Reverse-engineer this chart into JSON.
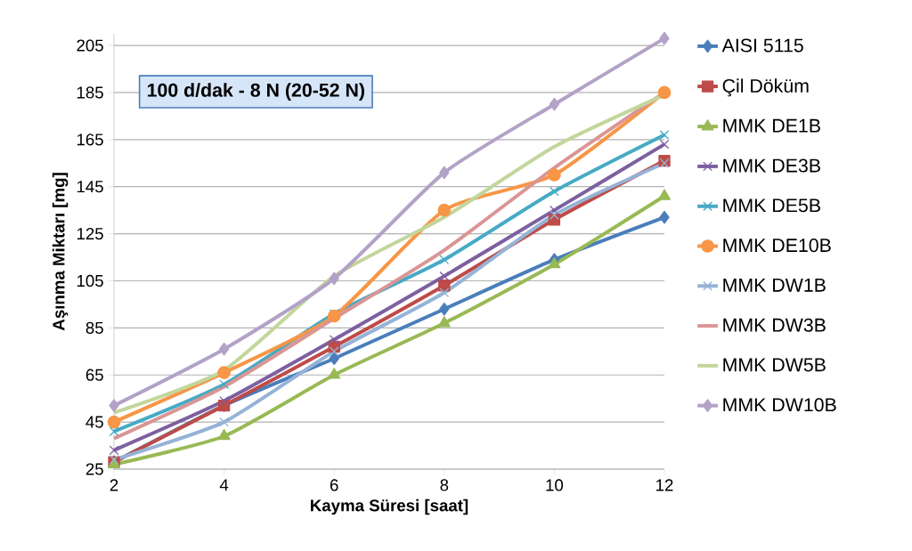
{
  "chart_data": {
    "type": "line",
    "xlabel": "Kayma Süresi [saat]",
    "ylabel": "Aşınma Miktarı [mg]",
    "annotations": [
      "100 d/dak - 8 N (20-52 N)"
    ],
    "x": [
      2,
      4,
      6,
      8,
      10,
      12
    ],
    "xlim": [
      2,
      12
    ],
    "xticks": [
      2,
      4,
      6,
      8,
      10,
      12
    ],
    "ylim": [
      25,
      210
    ],
    "yticks": [
      25,
      45,
      65,
      85,
      105,
      125,
      145,
      165,
      185,
      205
    ],
    "grid": "y",
    "legend": "right",
    "series": [
      {
        "name": "AISI 5115",
        "color": "#4a7ebb",
        "marker": "diamond",
        "values": [
          28,
          52,
          72,
          93,
          114,
          132
        ]
      },
      {
        "name": "Çil Döküm",
        "color": "#be4b48",
        "marker": "square",
        "values": [
          28,
          52,
          77,
          103,
          131,
          156
        ]
      },
      {
        "name": "MMK DE1B",
        "color": "#98b954",
        "marker": "triangle",
        "values": [
          27,
          39,
          65,
          87,
          112,
          141
        ]
      },
      {
        "name": "MMK DE3B",
        "color": "#7d60a0",
        "marker": "cross",
        "values": [
          33,
          54,
          80,
          107,
          135,
          163
        ]
      },
      {
        "name": "MMK DE5B",
        "color": "#46aac5",
        "marker": "cross",
        "values": [
          41,
          61,
          91,
          114,
          143,
          167
        ]
      },
      {
        "name": "MMK DE10B",
        "color": "#f79646",
        "marker": "circle",
        "values": [
          45,
          66,
          90,
          135,
          150,
          185
        ]
      },
      {
        "name": "MMK DW1B",
        "color": "#95b3d7",
        "marker": "cross",
        "values": [
          29,
          45,
          75,
          100,
          133,
          155
        ]
      },
      {
        "name": "MMK DW3B",
        "color": "#d99694",
        "marker": "none",
        "values": [
          38,
          60,
          89,
          118,
          153,
          185
        ]
      },
      {
        "name": "MMK DW5B",
        "color": "#c3d69b",
        "marker": "none",
        "values": [
          49,
          67,
          107,
          132,
          162,
          184
        ]
      },
      {
        "name": "MMK DW10B",
        "color": "#b3a2c7",
        "marker": "diamond",
        "values": [
          52,
          76,
          106,
          151,
          180,
          208
        ]
      }
    ]
  }
}
